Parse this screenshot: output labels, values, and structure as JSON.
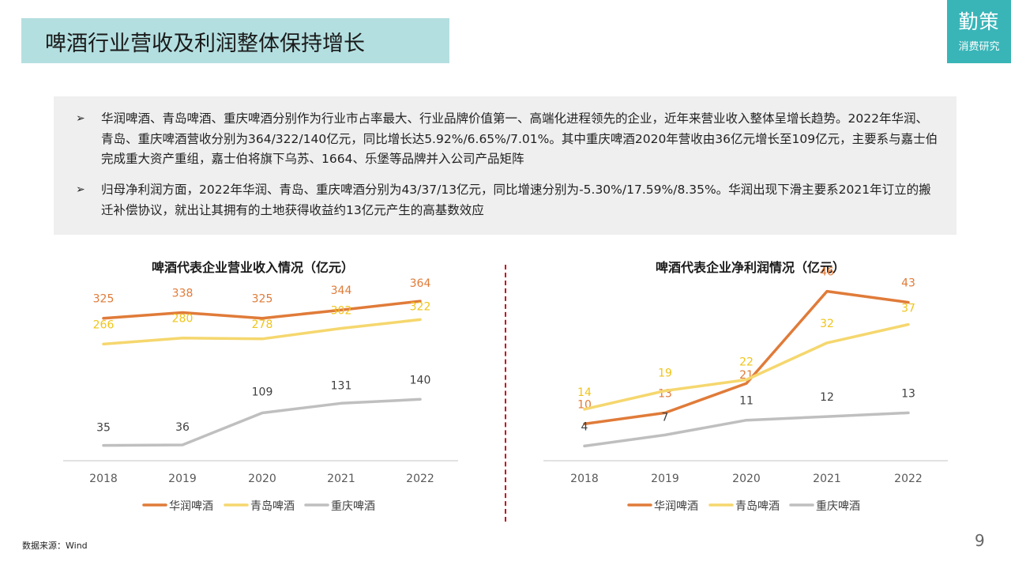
{
  "header": {
    "title": "啤酒行业营收及利润整体保持增长",
    "logo_main": "勤策",
    "logo_sub": "消费研究"
  },
  "summary": {
    "bullets": [
      "华润啤酒、青岛啤酒、重庆啤酒分别作为行业市占率最大、行业品牌价值第一、高端化进程领先的企业，近年来营业收入整体呈增长趋势。2022年华润、青岛、重庆啤酒营收分别为364/322/140亿元，同比增长达5.92%/6.65%/7.01%。其中重庆啤酒2020年营收由36亿元增长至109亿元，主要系与嘉士伯完成重大资产重组，嘉士伯将旗下乌苏、1664、乐堡等品牌并入公司产品矩阵",
      "归母净利润方面，2022年华润、青岛、重庆啤酒分别为43/37/13亿元，同比增速分别为-5.30%/17.59%/8.35%。华润出现下滑主要系2021年订立的搬迁补偿协议，就出让其拥有的土地获得收益约13亿元产生的高基数效应"
    ],
    "bullet_mark": "➢"
  },
  "chart_data": [
    {
      "type": "line",
      "title": "啤酒代表企业营业收入情况（亿元）",
      "categories": [
        "2018",
        "2019",
        "2020",
        "2021",
        "2022"
      ],
      "series": [
        {
          "name": "华润啤酒",
          "color": "#e07b39",
          "values": [
            325,
            338,
            325,
            344,
            364
          ]
        },
        {
          "name": "青岛啤酒",
          "color": "#f5d76e",
          "values": [
            266,
            280,
            278,
            302,
            322
          ]
        },
        {
          "name": "重庆啤酒",
          "color": "#bfbfbf",
          "values": [
            35,
            36,
            109,
            131,
            140
          ]
        }
      ],
      "ylim": [
        0,
        420
      ],
      "grid": false,
      "legend": "bottom"
    },
    {
      "type": "line",
      "title": "啤酒代表企业净利润情况（亿元）",
      "categories": [
        "2018",
        "2019",
        "2020",
        "2021",
        "2022"
      ],
      "series": [
        {
          "name": "华润啤酒",
          "color": "#e07b39",
          "values": [
            10,
            13,
            21,
            46,
            43
          ]
        },
        {
          "name": "青岛啤酒",
          "color": "#f5d76e",
          "values": [
            14,
            19,
            22,
            32,
            37
          ]
        },
        {
          "name": "重庆啤酒",
          "color": "#bfbfbf",
          "values": [
            4,
            7,
            11,
            12,
            13
          ]
        }
      ],
      "ylim": [
        0,
        50
      ],
      "grid": false,
      "legend": "bottom"
    }
  ],
  "footer": {
    "source": "数据来源：Wind",
    "page": "9"
  }
}
